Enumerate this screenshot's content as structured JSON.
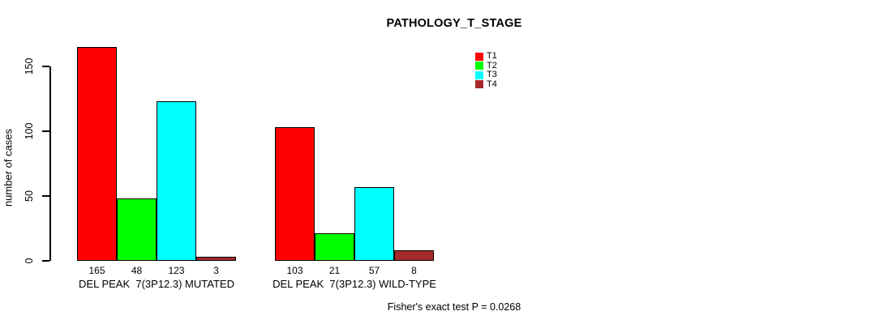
{
  "chart_data": {
    "type": "bar",
    "title": "PATHOLOGY_T_STAGE",
    "ylabel": "number of cases",
    "xlabel": "",
    "yticks": [
      0,
      50,
      100,
      150
    ],
    "ylim": [
      0,
      168
    ],
    "grid": false,
    "legend_position": "top-right",
    "bar_value_labels_shown": true,
    "series": [
      {
        "name": "T1",
        "color": "#ff0000"
      },
      {
        "name": "T2",
        "color": "#00ff00"
      },
      {
        "name": "T3",
        "color": "#00ffff"
      },
      {
        "name": "T4",
        "color": "#a52a2a"
      }
    ],
    "groups": [
      {
        "label": "DEL PEAK  7(3P12.3) MUTATED",
        "values": [
          165,
          48,
          123,
          3
        ]
      },
      {
        "label": "DEL PEAK  7(3P12.3) WILD-TYPE",
        "values": [
          103,
          21,
          57,
          8
        ]
      }
    ],
    "annotation": "Fisher's exact test P = 0.0268"
  }
}
